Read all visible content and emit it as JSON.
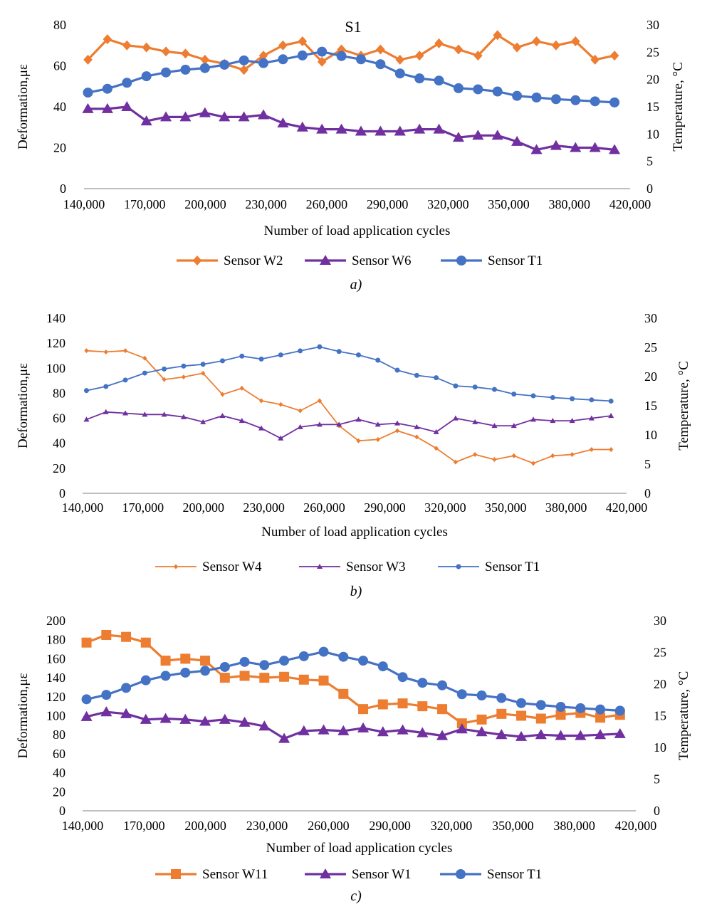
{
  "chart_data": [
    {
      "type": "line",
      "panel_label": "a)",
      "title": "S1",
      "xlabel": "Number of load application cycles",
      "ylabel": "Deformation,με",
      "y2label": "Temperature, °C",
      "x": [
        142000,
        152000,
        162000,
        172000,
        182000,
        192000,
        202000,
        212000,
        222000,
        232000,
        242000,
        252000,
        262000,
        272000,
        282000,
        292000,
        302000,
        312000,
        322000,
        332000,
        342000,
        352000,
        362000,
        372000,
        382000,
        392000,
        402000,
        412000
      ],
      "xlim": [
        140000,
        420000
      ],
      "xticks": [
        "140,000",
        "170,000",
        "200,000",
        "230,000",
        "260,000",
        "290,000",
        "320,000",
        "350,000",
        "380,000",
        "420,000"
      ],
      "ylim": [
        0,
        80
      ],
      "yticks": [
        "0",
        "20",
        "40",
        "60",
        "80"
      ],
      "y2lim": [
        0,
        30
      ],
      "y2ticks": [
        "0",
        "5",
        "10",
        "15",
        "20",
        "25",
        "30"
      ],
      "legend_position": "bottom",
      "grid": false,
      "series": [
        {
          "name": "Sensor W2",
          "axis": "left",
          "marker": "diamond",
          "color": "#ED7D31",
          "values": [
            63,
            73,
            70,
            69,
            67,
            66,
            63,
            61,
            58,
            65,
            70,
            72,
            62,
            68,
            65,
            68,
            63,
            65,
            71,
            68,
            65,
            75,
            69,
            72,
            70,
            72,
            63,
            65
          ]
        },
        {
          "name": "Sensor W6",
          "axis": "left",
          "marker": "triangle",
          "color": "#7030A0",
          "values": [
            39,
            39,
            40,
            33,
            35,
            35,
            37,
            35,
            35,
            36,
            32,
            30,
            29,
            29,
            28,
            28,
            28,
            29,
            29,
            25,
            26,
            26,
            23,
            19,
            21,
            20,
            20,
            19
          ]
        },
        {
          "name": "Sensor T1",
          "axis": "right",
          "marker": "circle",
          "color": "#4472C4",
          "values": [
            17.6,
            18.3,
            19.4,
            20.6,
            21.3,
            21.8,
            22.1,
            22.7,
            23.5,
            23.0,
            23.7,
            24.4,
            25.1,
            24.3,
            23.7,
            22.8,
            21.1,
            20.2,
            19.8,
            18.4,
            18.2,
            17.8,
            17.0,
            16.7,
            16.4,
            16.2,
            16.0,
            15.8
          ]
        }
      ]
    },
    {
      "type": "line",
      "panel_label": "b)",
      "title": "",
      "xlabel": "Number of load application cycles",
      "ylabel": "Deformation,με",
      "y2label": "Temperature, °C",
      "x": [
        142000,
        152000,
        162000,
        172000,
        182000,
        192000,
        202000,
        212000,
        222000,
        232000,
        242000,
        252000,
        262000,
        272000,
        282000,
        292000,
        302000,
        312000,
        322000,
        332000,
        342000,
        352000,
        362000,
        372000,
        382000,
        392000,
        402000,
        412000
      ],
      "xlim": [
        140000,
        420000
      ],
      "xticks": [
        "140,000",
        "170,000",
        "200,000",
        "230,000",
        "260,000",
        "290,000",
        "320,000",
        "350,000",
        "380,000",
        "420,000"
      ],
      "ylim": [
        0,
        140
      ],
      "yticks": [
        "0",
        "20",
        "40",
        "60",
        "80",
        "100",
        "120",
        "140"
      ],
      "y2lim": [
        0,
        30
      ],
      "y2ticks": [
        "0",
        "5",
        "10",
        "15",
        "20",
        "25",
        "30"
      ],
      "legend_position": "bottom",
      "grid": false,
      "series": [
        {
          "name": "Sensor W4",
          "axis": "left",
          "marker": "smalldiamond",
          "color": "#ED7D31",
          "values": [
            114,
            113,
            114,
            108,
            91,
            93,
            96,
            79,
            84,
            74,
            71,
            66,
            74,
            54,
            42,
            43,
            50,
            45,
            36,
            25,
            31,
            27,
            30,
            24,
            30,
            31,
            35,
            35
          ]
        },
        {
          "name": "Sensor W3",
          "axis": "left",
          "marker": "smalltriangle",
          "color": "#7030A0",
          "values": [
            59,
            65,
            64,
            63,
            63,
            61,
            57,
            62,
            58,
            52,
            44,
            53,
            55,
            55,
            59,
            55,
            56,
            53,
            49,
            60,
            57,
            54,
            54,
            59,
            58,
            58,
            60,
            62
          ]
        },
        {
          "name": "Sensor T1",
          "axis": "right",
          "marker": "smallcircle",
          "color": "#4472C4",
          "values": [
            17.6,
            18.3,
            19.4,
            20.6,
            21.3,
            21.8,
            22.1,
            22.7,
            23.5,
            23.0,
            23.7,
            24.4,
            25.1,
            24.3,
            23.7,
            22.8,
            21.1,
            20.2,
            19.8,
            18.4,
            18.2,
            17.8,
            17.0,
            16.7,
            16.4,
            16.2,
            16.0,
            15.8
          ]
        }
      ]
    },
    {
      "type": "line",
      "panel_label": "c)",
      "title": "",
      "xlabel": "Number of load application cycles",
      "ylabel": "Deformation,με",
      "y2label": "Temperature, °C",
      "x": [
        142000,
        152000,
        162000,
        172000,
        182000,
        192000,
        202000,
        212000,
        222000,
        232000,
        242000,
        252000,
        262000,
        272000,
        282000,
        292000,
        302000,
        312000,
        322000,
        332000,
        342000,
        352000,
        362000,
        372000,
        382000,
        392000,
        402000,
        412000
      ],
      "xlim": [
        140000,
        420000
      ],
      "xticks": [
        "140,000",
        "170,000",
        "200,000",
        "230,000",
        "260,000",
        "290,000",
        "320,000",
        "350,000",
        "380,000",
        "420,000"
      ],
      "ylim": [
        0,
        200
      ],
      "yticks": [
        "0",
        "20",
        "40",
        "60",
        "80",
        "100",
        "120",
        "140",
        "160",
        "180",
        "200"
      ],
      "y2lim": [
        0,
        30
      ],
      "y2ticks": [
        "0",
        "5",
        "10",
        "15",
        "20",
        "25",
        "30"
      ],
      "legend_position": "bottom",
      "grid": false,
      "series": [
        {
          "name": "Sensor W11",
          "axis": "left",
          "marker": "square",
          "color": "#ED7D31",
          "values": [
            177,
            185,
            183,
            177,
            158,
            160,
            158,
            140,
            142,
            140,
            141,
            138,
            137,
            123,
            107,
            112,
            113,
            110,
            107,
            92,
            96,
            102,
            100,
            97,
            101,
            103,
            98,
            101
          ]
        },
        {
          "name": "Sensor W1",
          "axis": "left",
          "marker": "triangle",
          "color": "#7030A0",
          "values": [
            99,
            104,
            102,
            96,
            97,
            96,
            94,
            96,
            93,
            89,
            76,
            84,
            85,
            84,
            87,
            83,
            85,
            82,
            79,
            86,
            83,
            80,
            78,
            80,
            79,
            79,
            80,
            81
          ]
        },
        {
          "name": "Sensor T1",
          "axis": "right",
          "marker": "circle",
          "color": "#4472C4",
          "values": [
            17.6,
            18.3,
            19.4,
            20.6,
            21.3,
            21.8,
            22.1,
            22.7,
            23.5,
            23.0,
            23.7,
            24.4,
            25.1,
            24.3,
            23.7,
            22.8,
            21.1,
            20.2,
            19.8,
            18.4,
            18.2,
            17.8,
            17.0,
            16.7,
            16.4,
            16.2,
            16.0,
            15.8
          ]
        }
      ]
    }
  ]
}
